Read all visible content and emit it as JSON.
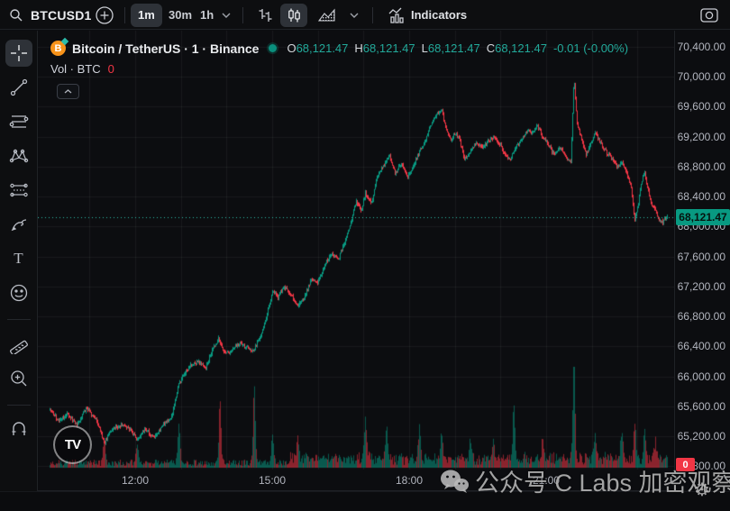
{
  "toolbar": {
    "symbol": "BTCUSD1",
    "timeframes": [
      {
        "label": "1m",
        "selected": true
      },
      {
        "label": "30m",
        "selected": false
      },
      {
        "label": "1h",
        "selected": false
      }
    ],
    "indicators_label": "Indicators",
    "icons": [
      "search-icon",
      "add-circle-icon",
      "bars-style-icon",
      "candles-style-icon",
      "area-style-icon",
      "chevron-down-icon",
      "indicators-icon",
      "camera-icon"
    ]
  },
  "sidebar": {
    "selected_tool": "crosshair",
    "tools": [
      "crosshair",
      "trend-line",
      "fib-retracement",
      "xabcd-pattern",
      "projection",
      "brush",
      "text",
      "emoji",
      "ruler",
      "zoom-in",
      "magnet"
    ]
  },
  "legend": {
    "title": "Bitcoin / TetherUS · 1 · Binance",
    "ohlc": {
      "o_label": "O",
      "o": "68,121.47",
      "h_label": "H",
      "h": "68,121.47",
      "l_label": "L",
      "l": "68,121.47",
      "c_label": "C",
      "c": "68,121.47",
      "change": "-0.01 (-0.00%)"
    },
    "volume_row": {
      "label": "Vol · BTC",
      "value": "0"
    },
    "tv_logo": "TV"
  },
  "price_axis": {
    "labels": [
      "70,400.00",
      "70,000.00",
      "69,600.00",
      "69,200.00",
      "68,800.00",
      "68,400.00",
      "68,000.00",
      "67,600.00",
      "67,200.00",
      "66,800.00",
      "66,400.00",
      "66,000.00",
      "65,600.00",
      "65,200.00",
      "64,800.00"
    ],
    "current_price_tag": "68,121.47",
    "volume_tag": "0"
  },
  "time_axis": {
    "labels": [
      "12:00",
      "15:00",
      "18:00",
      "21:00"
    ]
  },
  "watermark": {
    "text": "公众号 C Labs 加密观察"
  },
  "colors": {
    "up": "#089981",
    "down": "#f23645",
    "value_teal": "#22a99a",
    "tag_bg": "#089981",
    "bg": "#0c0d10",
    "grid": "rgba(255,255,255,0.055)",
    "axis_text": "#b2b5be"
  },
  "chart_data": {
    "type": "candlestick",
    "title": "Bitcoin / TetherUS",
    "interval": "1",
    "exchange": "Binance",
    "current": {
      "open": 68121.47,
      "high": 68121.47,
      "low": 68121.47,
      "close": 68121.47,
      "change": -0.01,
      "change_pct": 0.0
    },
    "current_price": 68121.47,
    "y_axis": {
      "min": 64600,
      "max": 70500,
      "tick_step": 400,
      "grid": true
    },
    "x_axis": {
      "start": "10:08",
      "end": "23:36",
      "tick_labels": [
        "12:00",
        "15:00",
        "18:00",
        "21:00"
      ],
      "minutes_per_bar": 1
    },
    "path": [
      [
        "10:08",
        65550
      ],
      [
        "10:19",
        65400
      ],
      [
        "10:31",
        65500
      ],
      [
        "10:43",
        65350
      ],
      [
        "10:55",
        65570
      ],
      [
        "11:07",
        65450
      ],
      [
        "11:19",
        65120
      ],
      [
        "11:30",
        65300
      ],
      [
        "11:42",
        65350
      ],
      [
        "11:54",
        65280
      ],
      [
        "12:02",
        65150
      ],
      [
        "12:12",
        65300
      ],
      [
        "12:24",
        65180
      ],
      [
        "12:36",
        65350
      ],
      [
        "12:47",
        65450
      ],
      [
        "12:57",
        65900
      ],
      [
        "13:05",
        66050
      ],
      [
        "13:13",
        66150
      ],
      [
        "13:23",
        66200
      ],
      [
        "13:32",
        66100
      ],
      [
        "13:41",
        66350
      ],
      [
        "13:49",
        66500
      ],
      [
        "13:58",
        66300
      ],
      [
        "14:08",
        66350
      ],
      [
        "14:16",
        66450
      ],
      [
        "14:24",
        66400
      ],
      [
        "14:34",
        66350
      ],
      [
        "14:43",
        66500
      ],
      [
        "14:52",
        66800
      ],
      [
        "15:00",
        67150
      ],
      [
        "15:07",
        67050
      ],
      [
        "15:15",
        67200
      ],
      [
        "15:24",
        67100
      ],
      [
        "15:33",
        66950
      ],
      [
        "15:42",
        67050
      ],
      [
        "15:51",
        67300
      ],
      [
        "15:59",
        67250
      ],
      [
        "16:09",
        67500
      ],
      [
        "16:18",
        67650
      ],
      [
        "16:26",
        67550
      ],
      [
        "16:35",
        67800
      ],
      [
        "16:44",
        68100
      ],
      [
        "16:50",
        68350
      ],
      [
        "16:56",
        68200
      ],
      [
        "17:02",
        68450
      ],
      [
        "17:10",
        68300
      ],
      [
        "17:17",
        68650
      ],
      [
        "17:25",
        68800
      ],
      [
        "17:34",
        68950
      ],
      [
        "17:41",
        68700
      ],
      [
        "17:49",
        68850
      ],
      [
        "17:57",
        68650
      ],
      [
        "18:05",
        68800
      ],
      [
        "18:13",
        69000
      ],
      [
        "18:21",
        69150
      ],
      [
        "18:28",
        69350
      ],
      [
        "18:36",
        69500
      ],
      [
        "18:42",
        69580
      ],
      [
        "18:48",
        69300
      ],
      [
        "18:54",
        69150
      ],
      [
        "19:00",
        69250
      ],
      [
        "19:06",
        69150
      ],
      [
        "19:12",
        68900
      ],
      [
        "19:20",
        69000
      ],
      [
        "19:27",
        69100
      ],
      [
        "19:36",
        69050
      ],
      [
        "19:44",
        69150
      ],
      [
        "19:51",
        69200
      ],
      [
        "19:59",
        69100
      ],
      [
        "20:05",
        68950
      ],
      [
        "20:12",
        68900
      ],
      [
        "20:19",
        69050
      ],
      [
        "20:27",
        69150
      ],
      [
        "20:35",
        69300
      ],
      [
        "20:41",
        69250
      ],
      [
        "20:48",
        69350
      ],
      [
        "20:55",
        69200
      ],
      [
        "21:02",
        69100
      ],
      [
        "21:10",
        68950
      ],
      [
        "21:19",
        69050
      ],
      [
        "21:26",
        68900
      ],
      [
        "21:32",
        68850
      ],
      [
        "21:36",
        69990
      ],
      [
        "21:40",
        69400
      ],
      [
        "21:46",
        69150
      ],
      [
        "21:52",
        68950
      ],
      [
        "21:58",
        69100
      ],
      [
        "22:04",
        69250
      ],
      [
        "22:09",
        69150
      ],
      [
        "22:15",
        69050
      ],
      [
        "22:21",
        68950
      ],
      [
        "22:27",
        68900
      ],
      [
        "22:33",
        68800
      ],
      [
        "22:39",
        68850
      ],
      [
        "22:45",
        68700
      ],
      [
        "22:51",
        68550
      ],
      [
        "22:56",
        68080
      ],
      [
        "23:00",
        68250
      ],
      [
        "23:05",
        68600
      ],
      [
        "23:09",
        68720
      ],
      [
        "23:13",
        68500
      ],
      [
        "23:18",
        68300
      ],
      [
        "23:23",
        68200
      ],
      [
        "23:27",
        68100
      ],
      [
        "23:32",
        68050
      ],
      [
        "23:36",
        68121
      ]
    ],
    "volume_spikes": [
      [
        "11:19",
        0.25
      ],
      [
        "12:02",
        0.2
      ],
      [
        "12:57",
        0.4
      ],
      [
        "13:51",
        0.62
      ],
      [
        "14:36",
        0.75
      ],
      [
        "15:00",
        0.3
      ],
      [
        "15:33",
        0.22
      ],
      [
        "17:02",
        0.42
      ],
      [
        "17:30",
        0.32
      ],
      [
        "18:13",
        0.3
      ],
      [
        "18:42",
        0.25
      ],
      [
        "19:20",
        0.2
      ],
      [
        "19:50",
        0.18
      ],
      [
        "20:17",
        0.5
      ],
      [
        "20:55",
        0.2
      ],
      [
        "21:36",
        1.0
      ],
      [
        "22:04",
        0.27
      ],
      [
        "22:39",
        0.3
      ],
      [
        "22:56",
        0.37
      ],
      [
        "23:09",
        0.27
      ],
      [
        "23:23",
        0.18
      ]
    ]
  }
}
